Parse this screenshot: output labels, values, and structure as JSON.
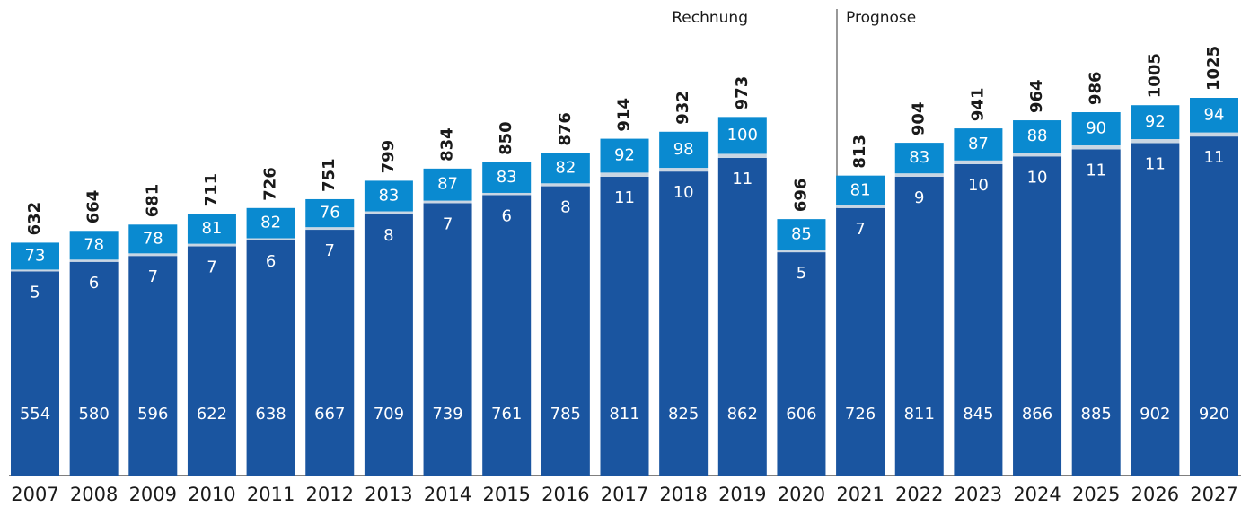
{
  "chart_data": {
    "type": "stacked_bar",
    "categories": [
      "2007",
      "2008",
      "2009",
      "2010",
      "2011",
      "2012",
      "2013",
      "2014",
      "2015",
      "2016",
      "2017",
      "2018",
      "2019",
      "2020",
      "2021",
      "2022",
      "2023",
      "2024",
      "2025",
      "2026",
      "2027"
    ],
    "series": [
      {
        "color": "#1a55a0",
        "values": [
          554,
          580,
          596,
          622,
          638,
          667,
          709,
          739,
          761,
          785,
          811,
          825,
          862,
          606,
          726,
          811,
          845,
          866,
          885,
          902,
          920
        ]
      },
      {
        "color": "#c9d6e3",
        "values": [
          5,
          6,
          7,
          7,
          6,
          7,
          8,
          7,
          6,
          8,
          11,
          10,
          11,
          5,
          7,
          9,
          10,
          10,
          11,
          11,
          11
        ]
      },
      {
        "color": "#0a8ad0",
        "values": [
          73,
          78,
          78,
          81,
          82,
          76,
          83,
          87,
          83,
          82,
          92,
          98,
          100,
          85,
          81,
          83,
          87,
          88,
          90,
          92,
          94
        ]
      }
    ],
    "totals": [
      632,
      664,
      681,
      711,
      726,
      751,
      799,
      834,
      850,
      876,
      914,
      932,
      973,
      696,
      813,
      904,
      941,
      964,
      986,
      1005,
      1025
    ],
    "annotations": [
      "Rechnung",
      "Prognose"
    ]
  }
}
